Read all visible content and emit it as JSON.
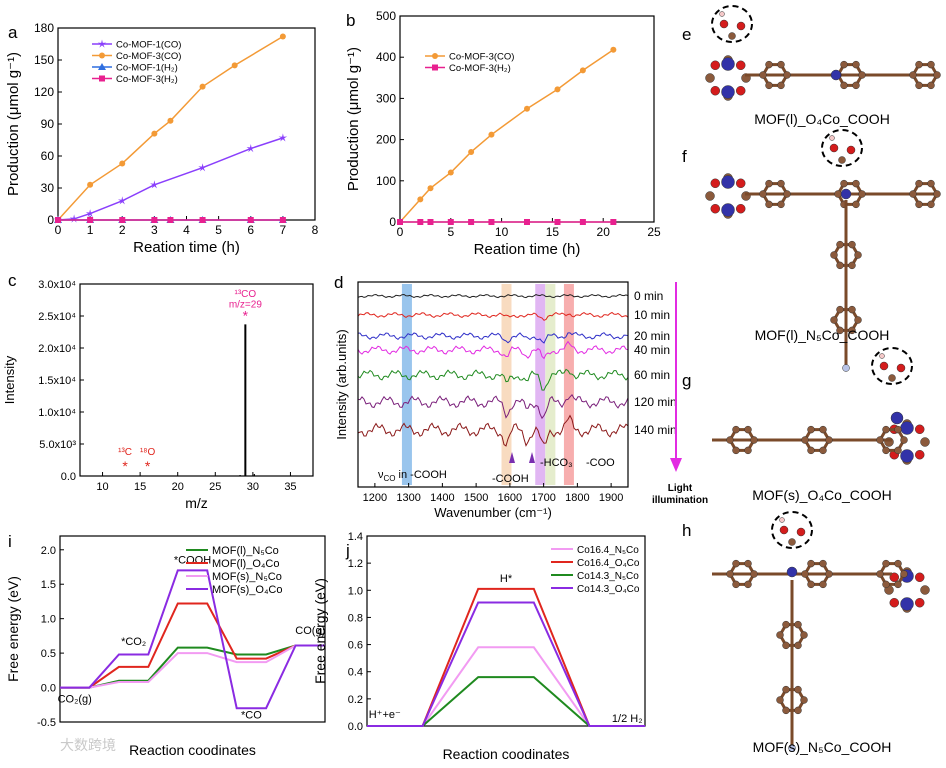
{
  "panels": {
    "a": "a",
    "b": "b",
    "c": "c",
    "d": "d",
    "e": "e",
    "f": "f",
    "g": "g",
    "h": "h",
    "i": "i",
    "j": "j"
  },
  "structures": {
    "e": "MOF(l)_O₄Co_COOH",
    "f": "MOF(l)_N₅Co_COOH",
    "g": "MOF(s)_O₄Co_COOH",
    "h": "MOF(s)_N₅Co_COOH"
  },
  "watermark": "大数跨境",
  "colors": {
    "orange": "#f39a36",
    "purple": "#8a3ffc",
    "blue": "#2f6fe0",
    "magenta": "#e8208f",
    "green": "#2e8b2e",
    "red": "#e0261e",
    "violet": "#8a2be2",
    "pink": "#f29bf2",
    "darkgreen": "#1f8a1f"
  },
  "chart_data": [
    {
      "panel": "a",
      "type": "line",
      "xlabel": "Reation time (h)",
      "ylabel": "Production (μmol g⁻¹)",
      "xlim": [
        0,
        8
      ],
      "ylim": [
        0,
        180
      ],
      "xticks": [
        "0",
        "1",
        "2",
        "3",
        "4",
        "5",
        "6",
        "7",
        "8"
      ],
      "yticks": [
        "0",
        "30",
        "60",
        "90",
        "120",
        "150",
        "180"
      ],
      "series": [
        {
          "name": "Co-MOF-1(CO)",
          "color": "#8a3ffc",
          "marker": "star",
          "x": [
            0,
            0.5,
            1,
            2,
            3,
            4.5,
            6,
            7
          ],
          "y": [
            0,
            1,
            6,
            18,
            33,
            49,
            67,
            77
          ]
        },
        {
          "name": "Co-MOF-3(CO)",
          "color": "#f39a36",
          "marker": "circle",
          "x": [
            0,
            1,
            2,
            3,
            3.5,
            4.5,
            5.5,
            7
          ],
          "y": [
            0,
            33,
            53,
            81,
            93,
            125,
            145,
            172
          ]
        },
        {
          "name": "Co-MOF-1(H₂)",
          "color": "#2f6fe0",
          "marker": "triangle",
          "x": [
            0,
            1,
            2,
            3,
            3.5,
            4.5,
            6,
            7
          ],
          "y": [
            0,
            0,
            0,
            0,
            0,
            0,
            0,
            0
          ]
        },
        {
          "name": "Co-MOF-3(H₂)",
          "color": "#e8208f",
          "marker": "square",
          "x": [
            0,
            1,
            2,
            3,
            3.5,
            4.5,
            6,
            7
          ],
          "y": [
            0,
            0,
            0,
            0,
            0,
            0,
            0,
            0
          ]
        }
      ]
    },
    {
      "panel": "b",
      "type": "line",
      "xlabel": "Reation time (h)",
      "ylabel": "Production (μmol g⁻¹)",
      "xlim": [
        0,
        25
      ],
      "ylim": [
        0,
        500
      ],
      "xticks": [
        "0",
        "5",
        "10",
        "15",
        "20",
        "25"
      ],
      "yticks": [
        "0",
        "100",
        "200",
        "300",
        "400",
        "500"
      ],
      "series": [
        {
          "name": "Co-MOF-3(CO)",
          "color": "#f39a36",
          "marker": "circle",
          "x": [
            0,
            2,
            3,
            5,
            7,
            9,
            12.5,
            15.5,
            18,
            21
          ],
          "y": [
            0,
            55,
            82,
            120,
            170,
            212,
            275,
            322,
            368,
            418
          ]
        },
        {
          "name": "Co-MOF-3(H₂)",
          "color": "#e8208f",
          "marker": "square",
          "x": [
            0,
            2,
            3,
            5,
            7,
            9,
            12.5,
            15.5,
            18,
            21
          ],
          "y": [
            0,
            0,
            0,
            0,
            0,
            0,
            0,
            0,
            0,
            0
          ]
        }
      ]
    },
    {
      "panel": "c",
      "type": "bar",
      "xlabel": "m/z",
      "ylabel": "Intensity",
      "xlim": [
        7,
        38
      ],
      "ylim": [
        0,
        30000
      ],
      "xticks": [
        "10",
        "15",
        "20",
        "25",
        "30",
        "35"
      ],
      "yticks": [
        "0.0",
        "5.0x10³",
        "1.0x10⁴",
        "1.5x10⁴",
        "2.0x10⁴",
        "2.5x10⁴",
        "3.0x10⁴"
      ],
      "peaks": [
        {
          "x": 29,
          "y": 23700
        },
        {
          "x": 30.2,
          "y": 300
        },
        {
          "x": 28.3,
          "y": 150
        }
      ],
      "annotations": [
        {
          "text": "¹³CO",
          "x": 29,
          "y": 28000,
          "color": "#e8208f"
        },
        {
          "text": "m/z=29",
          "x": 29,
          "y": 26300,
          "color": "#e8208f"
        },
        {
          "text": "*",
          "x": 29,
          "y": 24300,
          "color": "#e8208f"
        },
        {
          "text": "¹³C",
          "x": 13,
          "y": 3300,
          "color": "#e0261e"
        },
        {
          "text": "*",
          "x": 13,
          "y": 800,
          "color": "#e0261e"
        },
        {
          "text": "¹⁸O",
          "x": 16,
          "y": 3300,
          "color": "#e0261e"
        },
        {
          "text": "*",
          "x": 16,
          "y": 800,
          "color": "#e0261e"
        }
      ]
    },
    {
      "panel": "d",
      "type": "line",
      "xlabel": "Wavenumber (cm⁻¹)",
      "ylabel": "Intensity (arb.units)",
      "xlim": [
        1150,
        1950
      ],
      "xticks": [
        "1200",
        "1300",
        "1400",
        "1500",
        "1600",
        "1700",
        "1800",
        "1900"
      ],
      "time_labels": [
        "0 min",
        "10 min",
        "20 min",
        "40 min",
        "60 min",
        "120 min",
        "140 min"
      ],
      "trace_colors": [
        "#222222",
        "#e0261e",
        "#2f2fc8",
        "#e22be2",
        "#1f8a1f",
        "#7a1f7a",
        "#8b1a1a"
      ],
      "highlight_bands": [
        {
          "x": 1295,
          "color": "#7fb6e8"
        },
        {
          "x": 1590,
          "color": "#f6d2b0"
        },
        {
          "x": 1690,
          "color": "#d9a4f0"
        },
        {
          "x": 1720,
          "color": "#dfe8c0"
        },
        {
          "x": 1775,
          "color": "#f59a9a"
        }
      ],
      "annotations": {
        "vco": "ν",
        "vco_sub": "CO",
        "vco_rest": " in -COOH",
        "cooh": "-COOH",
        "hco3": "-HCO₃",
        "coo": "-COO",
        "arrow": [
          "Light",
          "illumination"
        ]
      }
    },
    {
      "panel": "i",
      "type": "line",
      "xlabel": "Reaction coodinates",
      "ylabel": "Free energy (eV)",
      "ylim": [
        -0.5,
        2.2
      ],
      "yticks": [
        "-0.5",
        "0.0",
        "0.5",
        "1.0",
        "1.5",
        "2.0"
      ],
      "states": [
        "CO₂(g)",
        "*CO₂",
        "*COOH",
        "*CO",
        "CO(g)"
      ],
      "series": [
        {
          "name": "MOF(l)_N₅Co",
          "color": "#1f8a1f",
          "values": [
            0,
            0.1,
            0.58,
            0.48,
            0.61
          ]
        },
        {
          "name": "MOF(l)_O₄Co",
          "color": "#e0261e",
          "values": [
            0,
            0.3,
            1.22,
            0.42,
            0.61
          ]
        },
        {
          "name": "MOF(s)_N₅Co",
          "color": "#f29bf2",
          "values": [
            0,
            0.08,
            0.5,
            0.37,
            0.61
          ]
        },
        {
          "name": "MOF(s)_O₄Co",
          "color": "#8a2be2",
          "values": [
            0,
            0.48,
            1.7,
            -0.3,
            0.61
          ]
        }
      ]
    },
    {
      "panel": "j",
      "type": "line",
      "xlabel": "Reaction coodinates",
      "ylabel": "Free energy (eV)",
      "ylim": [
        0,
        1.4
      ],
      "yticks": [
        "0.0",
        "0.2",
        "0.4",
        "0.6",
        "0.8",
        "1.0",
        "1.2",
        "1.4"
      ],
      "states": [
        "H⁺+e⁻",
        "H*",
        "1/2 H₂"
      ],
      "series": [
        {
          "name": "Co16.4_N₅Co",
          "color": "#f29bf2",
          "values": [
            0,
            0.58,
            0
          ]
        },
        {
          "name": "Co16.4_O₄Co",
          "color": "#e0261e",
          "values": [
            0,
            1.01,
            0
          ]
        },
        {
          "name": "Co14.3_N₅Co",
          "color": "#1f8a1f",
          "values": [
            0,
            0.36,
            0
          ]
        },
        {
          "name": "Co14.3_O₄Co",
          "color": "#8a2be2",
          "values": [
            0,
            0.91,
            0
          ]
        }
      ]
    }
  ]
}
